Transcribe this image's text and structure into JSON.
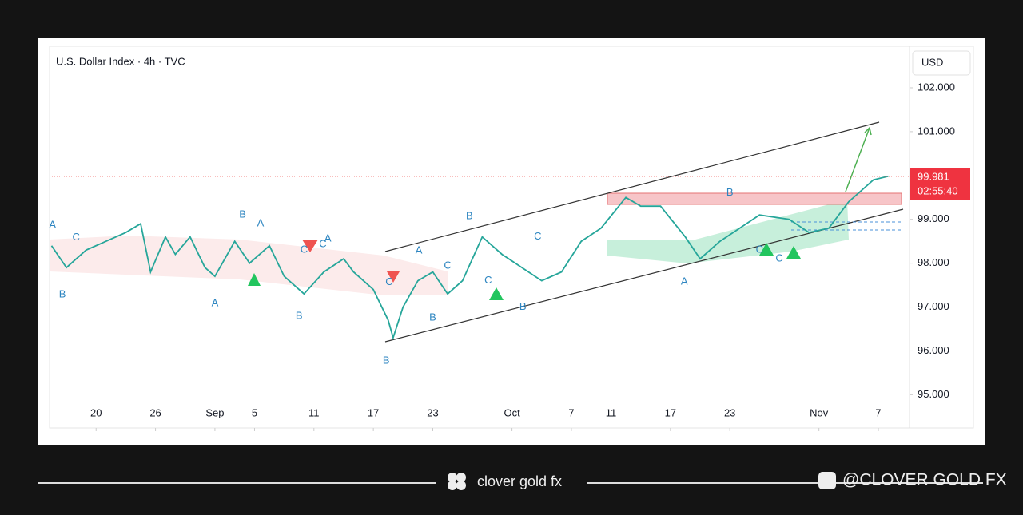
{
  "chart_data": {
    "type": "line",
    "title": "U.S. Dollar Index · 4h · TVC",
    "currency": "USD",
    "color": "#26a69a",
    "x": [
      15.5,
      17,
      19,
      21,
      23,
      24.5,
      25.5,
      27,
      28,
      29.5,
      31,
      32,
      34,
      35.5,
      37.5,
      39,
      41,
      43,
      45,
      46,
      48,
      49.5,
      50,
      51,
      52.5,
      54,
      55.5,
      57,
      59,
      61,
      63,
      65,
      67,
      69,
      71,
      73.5,
      75,
      77,
      79.5,
      81,
      83,
      85,
      87,
      90,
      92,
      94,
      96,
      98.5,
      100
    ],
    "values": [
      98.4,
      97.9,
      98.3,
      98.5,
      98.7,
      98.9,
      97.8,
      98.6,
      98.2,
      98.6,
      97.9,
      97.7,
      98.5,
      98.0,
      98.4,
      97.7,
      97.3,
      97.8,
      98.1,
      97.8,
      97.4,
      96.7,
      96.3,
      97.0,
      97.6,
      97.8,
      97.3,
      97.6,
      98.6,
      98.2,
      97.9,
      97.6,
      97.8,
      98.5,
      98.8,
      99.5,
      99.3,
      99.3,
      98.6,
      98.1,
      98.5,
      98.8,
      99.1,
      99.0,
      98.7,
      98.8,
      99.4,
      99.9,
      99.981
    ],
    "last_price": 99.981,
    "countdown": "02:55:40",
    "xlim": [
      15.3,
      101.5
    ],
    "xticks": [
      {
        "value": 20,
        "label": "20"
      },
      {
        "value": 26,
        "label": "26"
      },
      {
        "value": 32,
        "label": "Sep"
      },
      {
        "value": 36,
        "label": "5"
      },
      {
        "value": 42,
        "label": "11"
      },
      {
        "value": 48,
        "label": "17"
      },
      {
        "value": 54,
        "label": "23"
      },
      {
        "value": 62,
        "label": "Oct"
      },
      {
        "value": 68,
        "label": "7"
      },
      {
        "value": 72,
        "label": "11"
      },
      {
        "value": 78,
        "label": "17"
      },
      {
        "value": 84,
        "label": "23"
      },
      {
        "value": 93,
        "label": "Nov"
      },
      {
        "value": 99,
        "label": "7"
      }
    ],
    "ylim": [
      94.26,
      102.91
    ],
    "yticks": [
      {
        "value": 95,
        "label": "95.000"
      },
      {
        "value": 96,
        "label": "96.000"
      },
      {
        "value": 97,
        "label": "97.000"
      },
      {
        "value": 98,
        "label": "98.000"
      },
      {
        "value": 99,
        "label": "99.000"
      },
      {
        "value": 101,
        "label": "101.000"
      },
      {
        "value": 102,
        "label": "102.000"
      }
    ],
    "annotations": [
      {
        "text": "A",
        "x": 15.6,
        "y": 98.87
      },
      {
        "text": "C",
        "x": 17.98,
        "y": 98.58
      },
      {
        "text": "B",
        "x": 16.6,
        "y": 97.28
      },
      {
        "text": "B",
        "x": 34.8,
        "y": 99.1
      },
      {
        "text": "A",
        "x": 36.6,
        "y": 98.9
      },
      {
        "text": "A",
        "x": 32.0,
        "y": 97.08
      },
      {
        "text": "B",
        "x": 40.5,
        "y": 96.79
      },
      {
        "text": "C",
        "x": 41,
        "y": 98.3
      },
      {
        "text": "C",
        "x": 42.9,
        "y": 98.43
      },
      {
        "text": "A",
        "x": 43.4,
        "y": 98.56
      },
      {
        "text": "C",
        "x": 49.6,
        "y": 97.56
      },
      {
        "text": "B",
        "x": 49.3,
        "y": 95.77
      },
      {
        "text": "A",
        "x": 52.6,
        "y": 98.28
      },
      {
        "text": "B",
        "x": 54,
        "y": 96.75
      },
      {
        "text": "C",
        "x": 55.5,
        "y": 97.94
      },
      {
        "text": "B",
        "x": 57.7,
        "y": 99.07
      },
      {
        "text": "C",
        "x": 59.6,
        "y": 97.6
      },
      {
        "text": "C",
        "x": 64.6,
        "y": 98.6
      },
      {
        "text": "B",
        "x": 63.1,
        "y": 97.0
      },
      {
        "text": "B",
        "x": 84.0,
        "y": 99.6
      },
      {
        "text": "A",
        "x": 79.4,
        "y": 97.57
      },
      {
        "text": "C",
        "x": 87,
        "y": 98.3
      },
      {
        "text": "C",
        "x": 89,
        "y": 98.1
      }
    ]
  },
  "footer": {
    "brand": "clover gold fx",
    "handle": "@CLOVER GOLD FX"
  }
}
